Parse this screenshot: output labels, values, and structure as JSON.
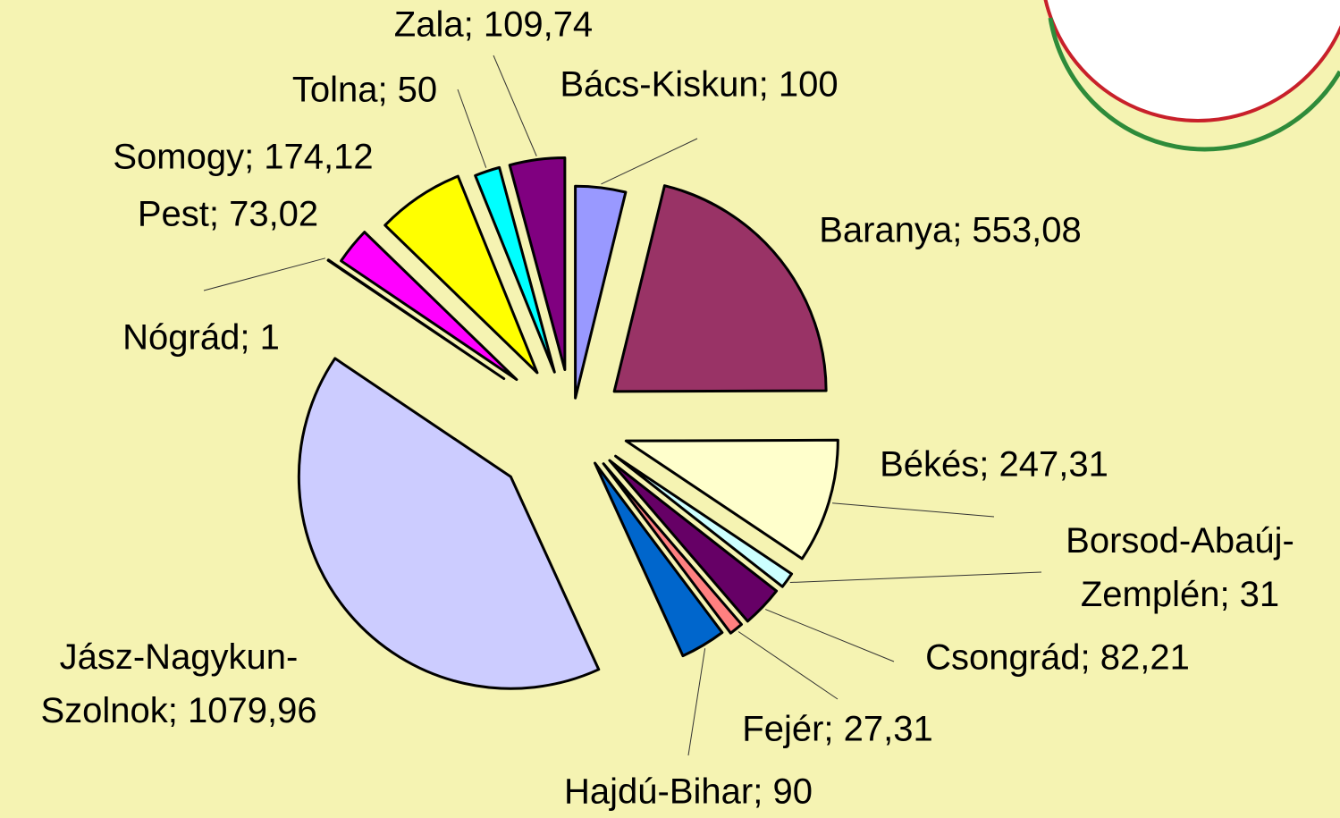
{
  "chart_data": {
    "type": "pie",
    "labels": [
      "Bács-Kiskun; 100",
      "Baranya; 553,08",
      "Békés; 247,31",
      "Borsod-Abaúj-Zemplén; 31",
      "Csongrád; 82,21",
      "Fejér; 27,31",
      "Hajdú-Bihar; 90",
      "Jász-Nagykun-Szolnok; 1079,96",
      "Nógrád; 1",
      "Pest; 73,02",
      "Somogy; 174,12",
      "Tolna; 50",
      "Zala; 109,74"
    ],
    "values": [
      100,
      553.08,
      247.31,
      31,
      82.21,
      27.31,
      90,
      1079.96,
      1,
      73.02,
      174.12,
      50,
      109.74
    ],
    "colors": [
      "#9999ff",
      "#993366",
      "#ffffcc",
      "#ccffff",
      "#660066",
      "#ff8080",
      "#0066cc",
      "#ccccff",
      "#000080",
      "#ff00ff",
      "#ffff00",
      "#00ffff",
      "#800080"
    ]
  }
}
